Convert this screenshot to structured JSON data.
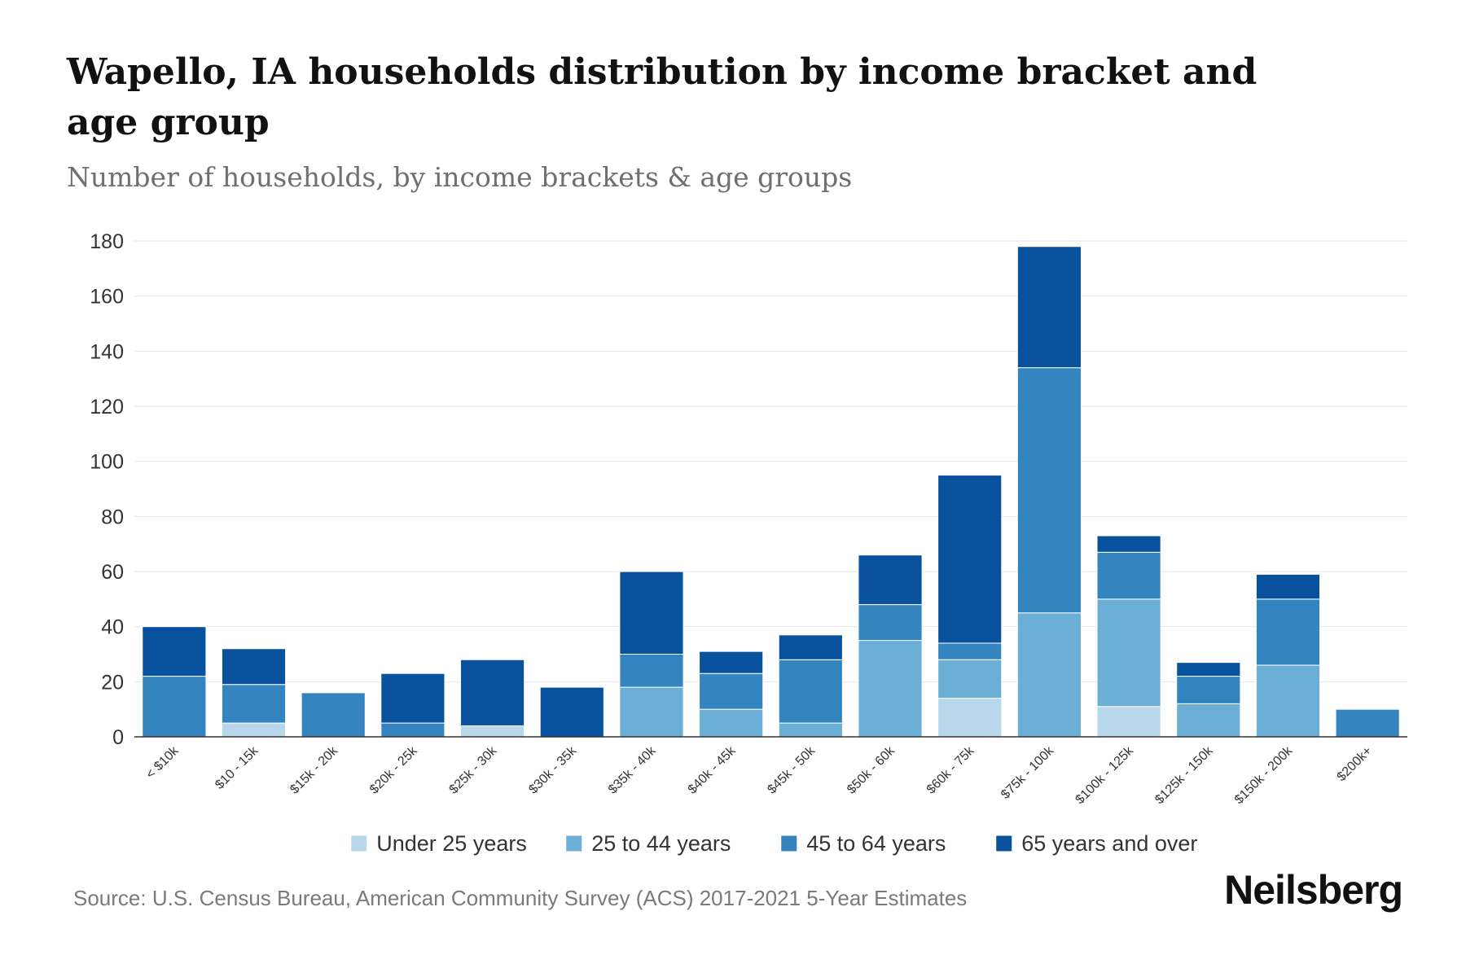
{
  "title": "Wapello, IA households distribution by income bracket and age group",
  "subtitle": "Number of households, by income brackets & age groups",
  "source": "Source: U.S. Census Bureau, American Community Survey (ACS) 2017-2021 5-Year Estimates",
  "brand": "Neilsberg",
  "chart_data": {
    "type": "bar",
    "stacked": true,
    "title": "Wapello, IA households distribution by income bracket and age group",
    "xlabel": "",
    "ylabel": "",
    "ylim": [
      0,
      180
    ],
    "yticks": [
      0,
      20,
      40,
      60,
      80,
      100,
      120,
      140,
      160,
      180
    ],
    "grid": true,
    "legend_position": "bottom",
    "categories": [
      "< $10k",
      "$10 - 15k",
      "$15k - 20k",
      "$20k - 25k",
      "$25k - 30k",
      "$30k - 35k",
      "$35k - 40k",
      "$40k - 45k",
      "$45k - 50k",
      "$50k - 60k",
      "$60k - 75k",
      "$75k - 100k",
      "$100k - 125k",
      "$125k - 150k",
      "$150k - 200k",
      "$200k+"
    ],
    "series": [
      {
        "name": "Under 25 years",
        "color": "#b8d7ea",
        "values": [
          0,
          5,
          0,
          0,
          4,
          0,
          0,
          0,
          0,
          0,
          14,
          0,
          11,
          0,
          0,
          0
        ]
      },
      {
        "name": "25 to 44 years",
        "color": "#6baed6",
        "values": [
          0,
          0,
          0,
          0,
          0,
          0,
          18,
          10,
          5,
          35,
          14,
          45,
          39,
          12,
          26,
          0
        ]
      },
      {
        "name": "45 to 64 years",
        "color": "#3484c0",
        "values": [
          22,
          14,
          16,
          5,
          0,
          0,
          12,
          13,
          23,
          13,
          6,
          89,
          17,
          10,
          24,
          10
        ]
      },
      {
        "name": "65 years and over",
        "color": "#08519c",
        "values": [
          18,
          13,
          0,
          18,
          24,
          18,
          30,
          8,
          9,
          18,
          61,
          44,
          6,
          5,
          9,
          0
        ]
      }
    ]
  }
}
